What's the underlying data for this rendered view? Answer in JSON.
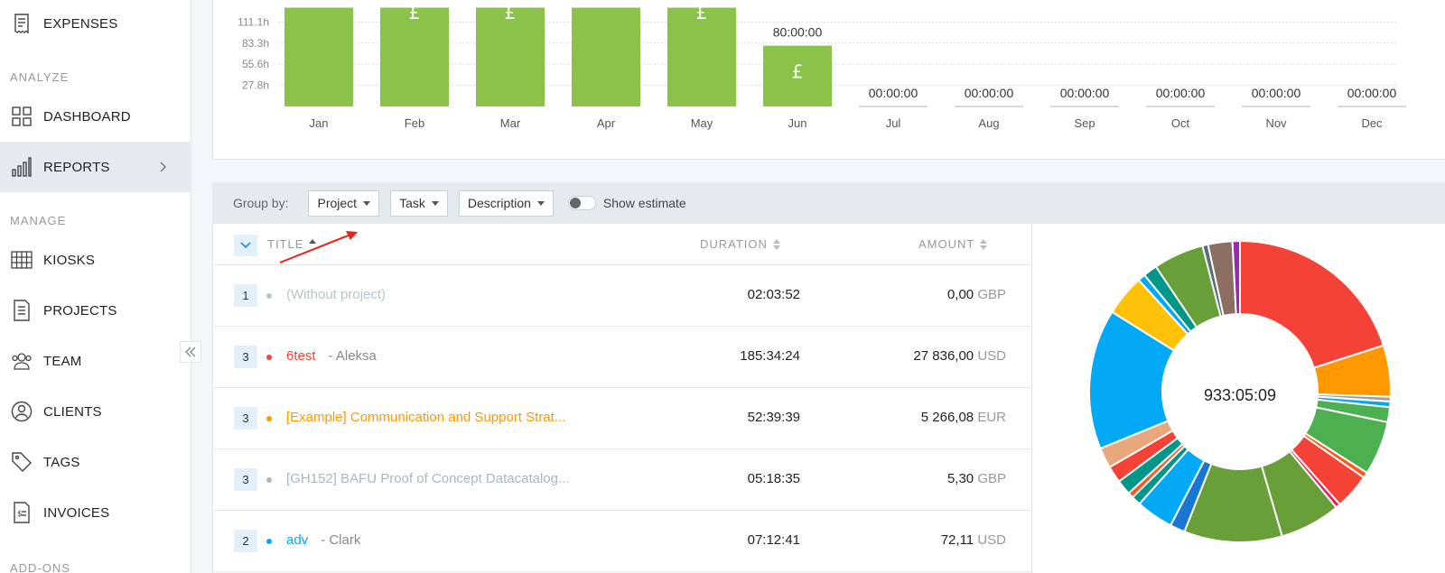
{
  "sidebar": {
    "items": [
      {
        "label": "EXPENSES",
        "icon": "receipt-icon"
      },
      {
        "label": "DASHBOARD",
        "icon": "dashboard-icon"
      },
      {
        "label": "REPORTS",
        "icon": "bar-chart-icon"
      },
      {
        "label": "KIOSKS",
        "icon": "kiosk-grid-icon"
      },
      {
        "label": "PROJECTS",
        "icon": "document-icon"
      },
      {
        "label": "TEAM",
        "icon": "team-icon"
      },
      {
        "label": "CLIENTS",
        "icon": "client-icon"
      },
      {
        "label": "TAGS",
        "icon": "tag-icon"
      },
      {
        "label": "INVOICES",
        "icon": "invoice-icon"
      }
    ],
    "sections": {
      "analyze": "ANALYZE",
      "manage": "MANAGE",
      "addons": "ADD-ONS"
    },
    "active_item": "REPORTS"
  },
  "chart_data": {
    "type": "bar",
    "categories": [
      "Jan",
      "Feb",
      "Mar",
      "Apr",
      "May",
      "Jun",
      "Jul",
      "Aug",
      "Sep",
      "Oct",
      "Nov",
      "Dec"
    ],
    "values": [
      130,
      130,
      130,
      130,
      130,
      80,
      0,
      0,
      0,
      0,
      0,
      0
    ],
    "ytick_labels": [
      "111.1h",
      "83.3h",
      "55.6h",
      "27.8h"
    ],
    "ytick_values": [
      111.1,
      83.3,
      55.6,
      27.8
    ],
    "ylim": [
      0,
      138.9
    ],
    "bar_symbol": "£",
    "bar_symbol_months": [
      "Feb",
      "Mar",
      "May",
      "Jun"
    ],
    "value_labels": {
      "Jun": "80:00:00",
      "Jul": "00:00:00",
      "Aug": "00:00:00",
      "Sep": "00:00:00",
      "Oct": "00:00:00",
      "Nov": "00:00:00",
      "Dec": "00:00:00"
    },
    "bar_color": "#8bc34a",
    "grid": true
  },
  "groupby": {
    "label": "Group by:",
    "options": [
      "Project",
      "Task",
      "Description"
    ],
    "toggle_label": "Show estimate",
    "toggle_on": false
  },
  "table": {
    "columns": {
      "title": "TITLE",
      "duration": "DURATION",
      "amount": "AMOUNT"
    },
    "rows": [
      {
        "count": "1",
        "name": "(Without project)",
        "client": "",
        "duration": "02:03:52",
        "amount": "0,00",
        "currency": "GBP",
        "color": "#b8c4ca",
        "text_color": "#b8c4ca"
      },
      {
        "count": "3",
        "name": "6test",
        "client": "- Aleksa",
        "duration": "185:34:24",
        "amount": "27 836,00",
        "currency": "USD",
        "color": "#f44336",
        "text_color": "#f44336"
      },
      {
        "count": "3",
        "name": "[Example] Communication and Support Strat...",
        "client": "",
        "duration": "52:39:39",
        "amount": "5 266,08",
        "currency": "EUR",
        "color": "#ff9800",
        "text_color": "#ff9800"
      },
      {
        "count": "3",
        "name": "[GH152] BAFU Proof of Concept Datacatalog...",
        "client": "",
        "duration": "05:18:35",
        "amount": "5,30",
        "currency": "GBP",
        "color": "#a7b8c0",
        "text_color": "#a7b8c0"
      },
      {
        "count": "2",
        "name": "adv",
        "client": "- Clark",
        "duration": "07:12:41",
        "amount": "72,11",
        "currency": "USD",
        "color": "#03a9f4",
        "text_color": "#03a9f4"
      }
    ]
  },
  "donut": {
    "total": "933:05:09",
    "segments": [
      {
        "value": 20,
        "color": "#f44336"
      },
      {
        "value": 5.5,
        "color": "#ff9800"
      },
      {
        "value": 0.5,
        "color": "#9e9e9e"
      },
      {
        "value": 0.6,
        "color": "#03a9f4"
      },
      {
        "value": 1.6,
        "color": "#4caf50"
      },
      {
        "value": 5.8,
        "color": "#4caf50"
      },
      {
        "value": 0.6,
        "color": "#ff5722"
      },
      {
        "value": 3.8,
        "color": "#f44336"
      },
      {
        "value": 0.5,
        "color": "#e91e63"
      },
      {
        "value": 6.5,
        "color": "#689f38"
      },
      {
        "value": 10.5,
        "color": "#689f38"
      },
      {
        "value": 1.6,
        "color": "#1976d2"
      },
      {
        "value": 4.0,
        "color": "#03a9f4"
      },
      {
        "value": 1.0,
        "color": "#009688"
      },
      {
        "value": 0.6,
        "color": "#ff5722"
      },
      {
        "value": 1.6,
        "color": "#009688"
      },
      {
        "value": 1.8,
        "color": "#f44336"
      },
      {
        "value": 2.2,
        "color": "#e8a87c"
      },
      {
        "value": 15.0,
        "color": "#03a9f4"
      },
      {
        "value": 4.4,
        "color": "#ffc107"
      },
      {
        "value": 0.8,
        "color": "#03a9f4"
      },
      {
        "value": 1.5,
        "color": "#009688"
      },
      {
        "value": 5.4,
        "color": "#689f38"
      },
      {
        "value": 0.6,
        "color": "#546e7a"
      },
      {
        "value": 2.6,
        "color": "#8d6e63"
      },
      {
        "value": 0.8,
        "color": "#9c27b0"
      }
    ]
  }
}
